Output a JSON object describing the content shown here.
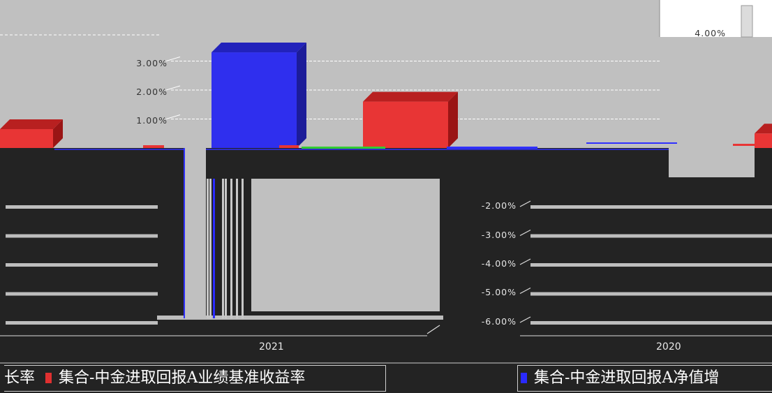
{
  "chart_data": {
    "type": "bar",
    "categories": [
      "2021",
      "2020"
    ],
    "series": [
      {
        "name": "集合-中金进取回报A净值增长率",
        "color": "#2222ee",
        "values": [
          3.3,
          0.1
        ]
      },
      {
        "name": "集合-中金进取回报A业绩基准收益率",
        "color": "#e03030",
        "values": [
          1.6,
          0.9
        ]
      }
    ],
    "y_ticks_upper": [
      "3.00%",
      "2.00%",
      "1.00%"
    ],
    "y_ticks_lower": [
      "-2.00%",
      "-3.00%",
      "-4.00%",
      "-5.00%",
      "-6.00%"
    ],
    "y_tick_top_right": "4.00%",
    "ylim": [
      -6,
      4
    ],
    "grid": true,
    "legend_position": "bottom"
  },
  "legend": {
    "left_text": "长率",
    "left_series": "集合-中金进取回报A业绩基准收益率",
    "right_series": "集合-中金进取回报A净值增"
  }
}
